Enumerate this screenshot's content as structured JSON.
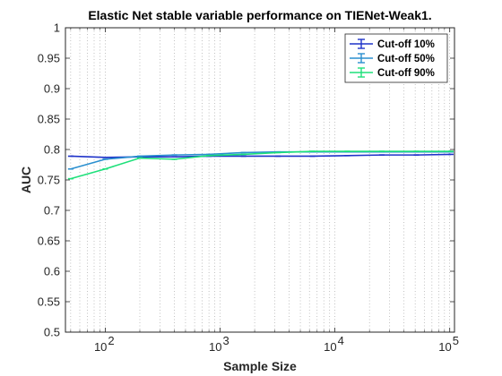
{
  "chart_data": {
    "type": "line",
    "title": "Elastic Net stable variable performance on TIENet-Weak1.",
    "xlabel": "Sample Size",
    "ylabel": "AUC",
    "x_scale": "log",
    "xlim": [
      45,
      110000
    ],
    "ylim": [
      0.5,
      1.0
    ],
    "grid": "x-major-minor-dotted",
    "legend_position": "top-right",
    "x_ticks": [
      {
        "value": 100,
        "base": "10",
        "exp": "2"
      },
      {
        "value": 1000,
        "base": "10",
        "exp": "3"
      },
      {
        "value": 10000,
        "base": "10",
        "exp": "4"
      },
      {
        "value": 100000,
        "base": "10",
        "exp": "5"
      }
    ],
    "y_ticks": [
      "0.5",
      "0.55",
      "0.6",
      "0.65",
      "0.7",
      "0.75",
      "0.8",
      "0.85",
      "0.9",
      "0.95",
      "1"
    ],
    "series": [
      {
        "name": "Cut-off 10%",
        "color": "#1f33c9",
        "x": [
          50,
          100,
          200,
          400,
          800,
          1600,
          3200,
          6400,
          12800,
          25600,
          51200,
          102400
        ],
        "y": [
          0.789,
          0.787,
          0.788,
          0.788,
          0.789,
          0.789,
          0.789,
          0.789,
          0.79,
          0.791,
          0.791,
          0.792
        ]
      },
      {
        "name": "Cut-off 50%",
        "color": "#2a8fcf",
        "x": [
          50,
          100,
          200,
          400,
          800,
          1600,
          3200,
          6400,
          12800,
          25600,
          51200,
          102400
        ],
        "y": [
          0.768,
          0.784,
          0.789,
          0.791,
          0.792,
          0.795,
          0.796,
          0.796,
          0.796,
          0.796,
          0.796,
          0.796
        ]
      },
      {
        "name": "Cut-off 90%",
        "color": "#1ee07a",
        "x": [
          50,
          100,
          200,
          400,
          800,
          1600,
          3200,
          6400,
          12800,
          25600,
          51200,
          102400
        ],
        "y": [
          0.752,
          0.768,
          0.786,
          0.784,
          0.79,
          0.792,
          0.795,
          0.797,
          0.797,
          0.797,
          0.797,
          0.797
        ]
      }
    ]
  }
}
